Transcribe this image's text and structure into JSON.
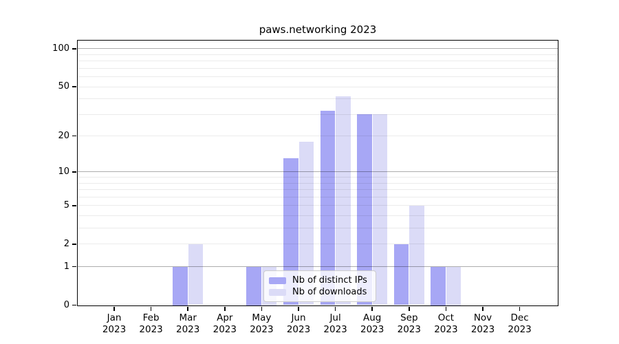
{
  "chart_data": {
    "type": "bar",
    "title": "paws.networking 2023",
    "yscale": "log10(1+y)",
    "ylim": [
      0,
      116
    ],
    "yticks": [
      0,
      1,
      2,
      5,
      10,
      20,
      50,
      100
    ],
    "grid_minor_values": [
      2,
      3,
      4,
      5,
      6,
      7,
      8,
      9,
      20,
      30,
      40,
      50,
      60,
      70,
      80,
      90
    ],
    "grid_major_values": [
      1,
      10,
      100
    ],
    "categories": [
      "Jan 2023",
      "Feb 2023",
      "Mar 2023",
      "Apr 2023",
      "May 2023",
      "Jun 2023",
      "Jul 2023",
      "Aug 2023",
      "Sep 2023",
      "Oct 2023",
      "Nov 2023",
      "Dec 2023"
    ],
    "series": [
      {
        "name": "Nb of distinct IPs",
        "color": "#a7a7f5",
        "values": [
          0,
          0,
          1,
          0,
          1,
          13,
          32,
          30,
          2,
          1,
          0,
          0
        ]
      },
      {
        "name": "Nb of downloads",
        "color": "#dbdbf7",
        "values": [
          0,
          0,
          2,
          0,
          1,
          18,
          42,
          30,
          5,
          1,
          0,
          0
        ]
      }
    ],
    "legend_position": "lower center, overlapping bars"
  }
}
